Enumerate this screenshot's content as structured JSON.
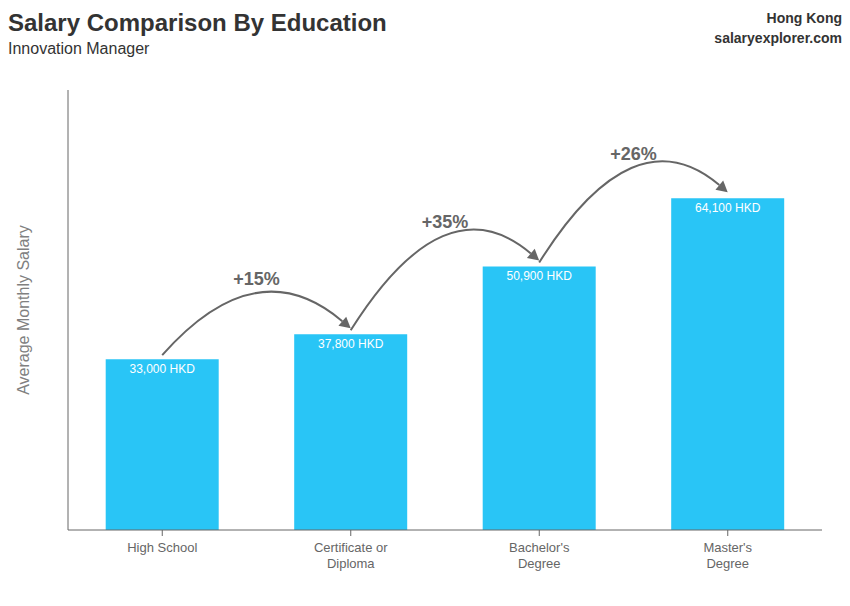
{
  "chart_data": {
    "type": "bar",
    "title": "Salary Comparison By Education",
    "subtitle": "Innovation Manager",
    "ylabel": "Average Monthly Salary",
    "categories": [
      "High School",
      "Certificate or\nDiploma",
      "Bachelor's\nDegree",
      "Master's\nDegree"
    ],
    "values": [
      33000,
      37800,
      50900,
      64100
    ],
    "value_labels": [
      "33,000 HKD",
      "37,800 HKD",
      "50,900 HKD",
      "64,100 HKD"
    ],
    "data_labels": true,
    "color": "#29c5f6",
    "ylim": [
      0,
      85000
    ],
    "tick_labels": "x",
    "grid": false,
    "annotations": [
      {
        "text": "Hong Kong"
      },
      {
        "text": "salaryexplorer.com"
      },
      {
        "text": "+15%",
        "from": "High School",
        "to": "Certificate or\nDiploma"
      },
      {
        "text": "+35%",
        "from": "Certificate or\nDiploma",
        "to": "Bachelor's\nDegree"
      },
      {
        "text": "+26%",
        "from": "Bachelor's\nDegree",
        "to": "Master's\nDegree"
      }
    ]
  }
}
